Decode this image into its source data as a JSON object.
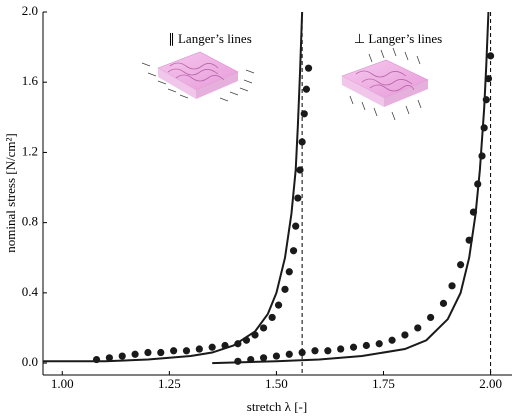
{
  "chart_data": {
    "type": "scatter",
    "x_label": "stretch λ [-]",
    "y_label": "nominal stress [N/cm²]",
    "xlim": [
      0.955,
      2.05
    ],
    "ylim": [
      -0.068,
      2.0
    ],
    "xticks": [
      {
        "value": 1.0,
        "label": "1.00"
      },
      {
        "value": 1.25,
        "label": "1.25"
      },
      {
        "value": 1.5,
        "label": "1.50"
      },
      {
        "value": 1.75,
        "label": "1.75"
      },
      {
        "value": 2.0,
        "label": "2.00"
      }
    ],
    "yticks": [
      {
        "value": 0,
        "label": "0.0"
      },
      0.4,
      0.8,
      1.2,
      1.6,
      {
        "value": 2.0,
        "label": "2.0"
      }
    ],
    "vlines": [
      1.56,
      2.0
    ],
    "annotations": [
      "∥ Langer’s lines",
      "⊥ Langer’s lines"
    ],
    "series": [
      {
        "kind": "points",
        "color": "#1a1a1a",
        "x": [
          1.08,
          1.11,
          1.14,
          1.17,
          1.2,
          1.23,
          1.26,
          1.29,
          1.32,
          1.35,
          1.38,
          1.41,
          1.43,
          1.45,
          1.47,
          1.49,
          1.505,
          1.52,
          1.53,
          1.54,
          1.545,
          1.55,
          1.555,
          1.56,
          1.565,
          1.57,
          1.575
        ],
        "values": [
          0.02,
          0.03,
          0.04,
          0.05,
          0.06,
          0.06,
          0.07,
          0.07,
          0.08,
          0.09,
          0.1,
          0.11,
          0.13,
          0.16,
          0.2,
          0.26,
          0.33,
          0.42,
          0.52,
          0.64,
          0.78,
          0.94,
          1.1,
          1.26,
          1.42,
          1.56,
          1.68
        ]
      },
      {
        "kind": "points",
        "color": "#1a1a1a",
        "x": [
          1.41,
          1.44,
          1.47,
          1.5,
          1.53,
          1.56,
          1.59,
          1.62,
          1.65,
          1.68,
          1.71,
          1.74,
          1.77,
          1.8,
          1.83,
          1.86,
          1.89,
          1.91,
          1.93,
          1.95,
          1.96,
          1.97,
          1.98,
          1.985,
          1.99,
          1.995,
          2.0
        ],
        "values": [
          0.01,
          0.02,
          0.03,
          0.04,
          0.05,
          0.06,
          0.07,
          0.07,
          0.08,
          0.09,
          0.1,
          0.11,
          0.13,
          0.16,
          0.2,
          0.26,
          0.34,
          0.44,
          0.56,
          0.7,
          0.86,
          1.02,
          1.18,
          1.34,
          1.5,
          1.62,
          1.75
        ]
      },
      {
        "kind": "line",
        "color": "#1a1a1a",
        "x": [
          0.955,
          1.1,
          1.2,
          1.3,
          1.35,
          1.4,
          1.45,
          1.48,
          1.5,
          1.52,
          1.535,
          1.545,
          1.55,
          1.555,
          1.56
        ],
        "values": [
          0.01,
          0.01,
          0.02,
          0.04,
          0.06,
          0.1,
          0.18,
          0.28,
          0.4,
          0.6,
          0.85,
          1.1,
          1.35,
          1.65,
          2.0
        ]
      },
      {
        "kind": "line",
        "color": "#1a1a1a",
        "x": [
          1.35,
          1.5,
          1.6,
          1.7,
          1.8,
          1.85,
          1.9,
          1.93,
          1.95,
          1.965,
          1.975,
          1.985,
          1.99,
          1.995
        ],
        "values": [
          0.0,
          0.01,
          0.02,
          0.04,
          0.08,
          0.13,
          0.25,
          0.4,
          0.6,
          0.85,
          1.1,
          1.45,
          1.7,
          2.0
        ]
      }
    ]
  }
}
